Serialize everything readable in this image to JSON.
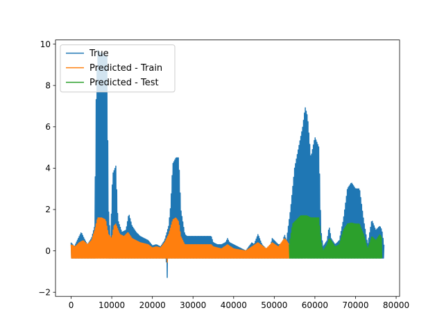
{
  "chart_data": {
    "type": "line",
    "title": "",
    "xlabel": "",
    "ylabel": "",
    "xlim": [
      -3850,
      80850
    ],
    "ylim": [
      -2.2,
      10.2
    ],
    "xticks": [
      0,
      10000,
      20000,
      30000,
      40000,
      50000,
      60000,
      70000,
      80000
    ],
    "yticks": [
      -2,
      0,
      2,
      4,
      6,
      8,
      10
    ],
    "xtick_labels": [
      "0",
      "10000",
      "20000",
      "30000",
      "40000",
      "50000",
      "60000",
      "70000",
      "80000"
    ],
    "ytick_labels": [
      "−2",
      "0",
      "2",
      "4",
      "6",
      "8",
      "10"
    ],
    "grid": false,
    "legend_position": "upper-left",
    "baseline": -0.35,
    "series": [
      {
        "name": "True",
        "color": "#1f77b4",
        "x_range": [
          0,
          77000
        ],
        "upper_envelope": [
          [
            0,
            0.4
          ],
          [
            800,
            0.2
          ],
          [
            1500,
            0.5
          ],
          [
            2500,
            0.9
          ],
          [
            3200,
            0.6
          ],
          [
            4000,
            0.3
          ],
          [
            5000,
            0.6
          ],
          [
            5800,
            1.2
          ],
          [
            6200,
            8.0
          ],
          [
            6600,
            9.7
          ],
          [
            7000,
            9.6
          ],
          [
            8000,
            9.5
          ],
          [
            8800,
            9.4
          ],
          [
            9200,
            2.0
          ],
          [
            9700,
            0.5
          ],
          [
            10200,
            3.7
          ],
          [
            11000,
            4.1
          ],
          [
            11500,
            1.5
          ],
          [
            12500,
            0.9
          ],
          [
            13500,
            1.0
          ],
          [
            14200,
            1.8
          ],
          [
            15000,
            1.2
          ],
          [
            16000,
            0.9
          ],
          [
            17000,
            0.7
          ],
          [
            18000,
            0.6
          ],
          [
            19000,
            0.5
          ],
          [
            20000,
            0.25
          ],
          [
            21000,
            0.3
          ],
          [
            22000,
            0.2
          ],
          [
            23000,
            0.5
          ],
          [
            24000,
            1.2
          ],
          [
            24500,
            2.2
          ],
          [
            25000,
            4.2
          ],
          [
            25800,
            4.5
          ],
          [
            26500,
            4.5
          ],
          [
            27000,
            2.0
          ],
          [
            28000,
            0.8
          ],
          [
            28500,
            0.7
          ],
          [
            34500,
            0.7
          ],
          [
            35000,
            0.4
          ],
          [
            36000,
            0.3
          ],
          [
            37000,
            0.3
          ],
          [
            38000,
            0.4
          ],
          [
            38500,
            0.6
          ],
          [
            39000,
            0.4
          ],
          [
            40000,
            0.3
          ],
          [
            41000,
            0.2
          ],
          [
            42000,
            0.1
          ],
          [
            43000,
            0.0
          ],
          [
            44500,
            0.4
          ],
          [
            45000,
            0.3
          ],
          [
            46000,
            0.8
          ],
          [
            47000,
            0.3
          ],
          [
            48000,
            0.1
          ],
          [
            49000,
            0.2
          ],
          [
            49500,
            0.6
          ],
          [
            50000,
            0.5
          ],
          [
            51000,
            0.3
          ],
          [
            52000,
            0.3
          ],
          [
            52500,
            0.8
          ],
          [
            53000,
            0.5
          ],
          [
            54000,
            2.0
          ],
          [
            55000,
            4.0
          ],
          [
            56000,
            5.0
          ],
          [
            57000,
            6.0
          ],
          [
            57600,
            6.95
          ],
          [
            58200,
            6.5
          ],
          [
            59000,
            4.5
          ],
          [
            60000,
            5.5
          ],
          [
            61000,
            5.0
          ],
          [
            61500,
            1.0
          ],
          [
            62000,
            0.2
          ],
          [
            63000,
            0.5
          ],
          [
            63500,
            1.2
          ],
          [
            64000,
            0.6
          ],
          [
            65000,
            0.3
          ],
          [
            66000,
            0.5
          ],
          [
            67000,
            1.5
          ],
          [
            68000,
            3.0
          ],
          [
            69000,
            3.3
          ],
          [
            70000,
            3.0
          ],
          [
            71000,
            3.0
          ],
          [
            72000,
            1.5
          ],
          [
            73000,
            0.3
          ],
          [
            74000,
            1.5
          ],
          [
            75000,
            1.0
          ],
          [
            76000,
            1.2
          ],
          [
            76500,
            1.0
          ],
          [
            77000,
            0.3
          ]
        ],
        "lower_envelope": [
          [
            0,
            -0.35
          ],
          [
            23400,
            -0.35
          ],
          [
            23600,
            -1.6
          ],
          [
            23800,
            -0.35
          ],
          [
            77000,
            -0.35
          ]
        ]
      },
      {
        "name": "Predicted - Train",
        "color": "#ff7f0e",
        "x_range": [
          0,
          53700
        ],
        "upper_envelope": [
          [
            0,
            0.3
          ],
          [
            1000,
            0.2
          ],
          [
            2000,
            0.4
          ],
          [
            3000,
            0.5
          ],
          [
            4000,
            0.3
          ],
          [
            5000,
            0.5
          ],
          [
            5800,
            1.0
          ],
          [
            6500,
            1.6
          ],
          [
            7500,
            1.6
          ],
          [
            8500,
            1.5
          ],
          [
            9200,
            0.8
          ],
          [
            10000,
            0.6
          ],
          [
            10500,
            1.2
          ],
          [
            11000,
            1.3
          ],
          [
            12000,
            0.8
          ],
          [
            13000,
            0.7
          ],
          [
            14000,
            0.9
          ],
          [
            15000,
            0.6
          ],
          [
            16000,
            0.5
          ],
          [
            17000,
            0.4
          ],
          [
            18000,
            0.35
          ],
          [
            19000,
            0.3
          ],
          [
            20000,
            0.15
          ],
          [
            21000,
            0.2
          ],
          [
            22000,
            0.15
          ],
          [
            23000,
            0.4
          ],
          [
            24000,
            0.8
          ],
          [
            25000,
            1.5
          ],
          [
            25800,
            1.6
          ],
          [
            26500,
            1.4
          ],
          [
            27000,
            0.7
          ],
          [
            28000,
            0.3
          ],
          [
            34500,
            0.3
          ],
          [
            35000,
            0.2
          ],
          [
            37000,
            0.1
          ],
          [
            38500,
            0.3
          ],
          [
            40000,
            0.1
          ],
          [
            43000,
            0.0
          ],
          [
            44500,
            0.2
          ],
          [
            46000,
            0.4
          ],
          [
            48000,
            0.1
          ],
          [
            49500,
            0.4
          ],
          [
            51000,
            0.2
          ],
          [
            52500,
            0.6
          ],
          [
            53000,
            0.5
          ],
          [
            53700,
            0.3
          ]
        ],
        "lower_envelope": [
          [
            0,
            -0.35
          ],
          [
            23500,
            -0.35
          ],
          [
            23600,
            -0.75
          ],
          [
            23700,
            -0.35
          ],
          [
            53700,
            -0.35
          ]
        ]
      },
      {
        "name": "Predicted - Test",
        "color": "#2ca02c",
        "x_range": [
          53700,
          76500
        ],
        "upper_envelope": [
          [
            53700,
            0.3
          ],
          [
            54500,
            1.3
          ],
          [
            55500,
            1.5
          ],
          [
            56500,
            1.7
          ],
          [
            58000,
            1.7
          ],
          [
            59000,
            1.6
          ],
          [
            60000,
            1.6
          ],
          [
            61000,
            1.6
          ],
          [
            61500,
            0.5
          ],
          [
            62000,
            0.0
          ],
          [
            63000,
            0.3
          ],
          [
            63500,
            0.6
          ],
          [
            64000,
            0.5
          ],
          [
            65000,
            0.2
          ],
          [
            66000,
            0.3
          ],
          [
            67000,
            1.0
          ],
          [
            68000,
            1.3
          ],
          [
            69000,
            1.35
          ],
          [
            70000,
            1.3
          ],
          [
            71000,
            1.3
          ],
          [
            72000,
            0.8
          ],
          [
            73000,
            0.1
          ],
          [
            74000,
            0.7
          ],
          [
            75000,
            0.5
          ],
          [
            76000,
            0.8
          ],
          [
            76500,
            0.6
          ]
        ],
        "lower_envelope": [
          [
            53700,
            -0.35
          ],
          [
            76500,
            -0.35
          ]
        ]
      }
    ]
  }
}
